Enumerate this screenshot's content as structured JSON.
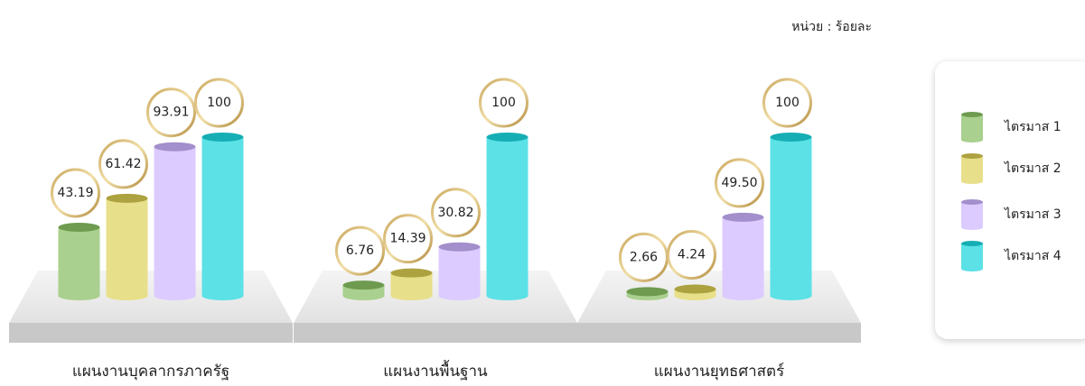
{
  "chart_data": {
    "type": "bar",
    "unit": "หน่วย : ร้อยละ",
    "categories": [
      "แผนงานบุคลากรภาครัฐ",
      "แผนงานพื้นฐาน",
      "แผนงานยุทธศาสตร์"
    ],
    "series": [
      {
        "name": "ไตรมาส 1",
        "color": "#a9d08e",
        "values": [
          43.19,
          6.76,
          2.66
        ]
      },
      {
        "name": "ไตรมาส 2",
        "color": "#e8df8a",
        "values": [
          61.42,
          14.39,
          4.24
        ]
      },
      {
        "name": "ไตรมาส 3",
        "color": "#dccbff",
        "values": [
          93.91,
          30.82,
          49.5
        ],
        "value_labels": [
          "93.91",
          "30.82",
          "49.50"
        ]
      },
      {
        "name": "ไตรมาส 4",
        "color": "#5ce1e6",
        "values": [
          100,
          100,
          100
        ]
      }
    ],
    "ylim": [
      0,
      100
    ],
    "legend": "right"
  }
}
